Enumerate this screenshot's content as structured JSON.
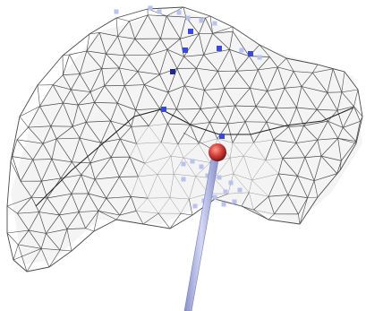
{
  "scene": {
    "colors": {
      "background": "#ffffff",
      "mesh_edge": "#4a4a4a",
      "mesh_edge_light": "#9a9a9a",
      "marker_faint": "#b9c2ef",
      "marker_mid": "#3b49d8",
      "marker_dark": "#1f2a8a",
      "probe_tip": "#cc3a36",
      "probe_shaft": "#aab2e8"
    },
    "icons": {
      "mesh": "wireframe-mesh-icon",
      "probe": "probe-needle-icon",
      "marker": "landmark-point-icon"
    }
  }
}
